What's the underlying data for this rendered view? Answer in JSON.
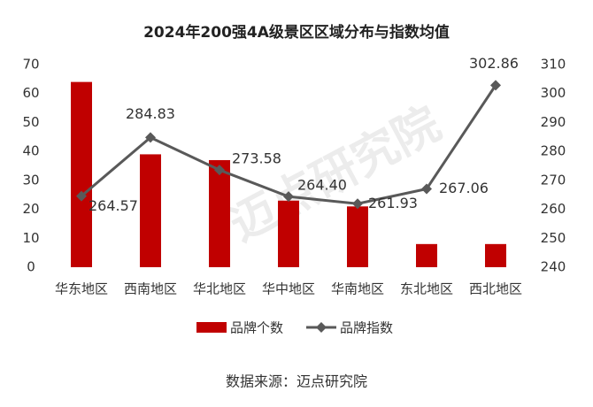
{
  "chart_data": {
    "type": "combo",
    "title": "2024年200强4A级景区区域分布与指数均值",
    "categories": [
      "华东地区",
      "西南地区",
      "华北地区",
      "华中地区",
      "华南地区",
      "东北地区",
      "西北地区"
    ],
    "series": [
      {
        "name": "品牌个数",
        "type": "bar",
        "color": "#c00000",
        "values": [
          64,
          39,
          37,
          23,
          21,
          8,
          8
        ]
      },
      {
        "name": "品牌指数",
        "type": "line",
        "axis": "y2",
        "color": "#595959",
        "values": [
          264.57,
          284.83,
          273.58,
          264.4,
          261.93,
          267.06,
          302.86
        ],
        "value_labels": [
          "264.57",
          "284.83",
          "273.58",
          "264.40",
          "261.93",
          "267.06",
          "302.86"
        ]
      }
    ],
    "ylim": [
      0,
      70
    ],
    "yticks": [
      0,
      10,
      20,
      30,
      40,
      50,
      60,
      70
    ],
    "y2lim": [
      240,
      310
    ],
    "y2ticks": [
      240,
      250,
      260,
      270,
      280,
      290,
      300,
      310
    ],
    "legend": "bottom",
    "grid": false,
    "watermark": "迈点研究院",
    "source": "数据来源：迈点研究院"
  }
}
